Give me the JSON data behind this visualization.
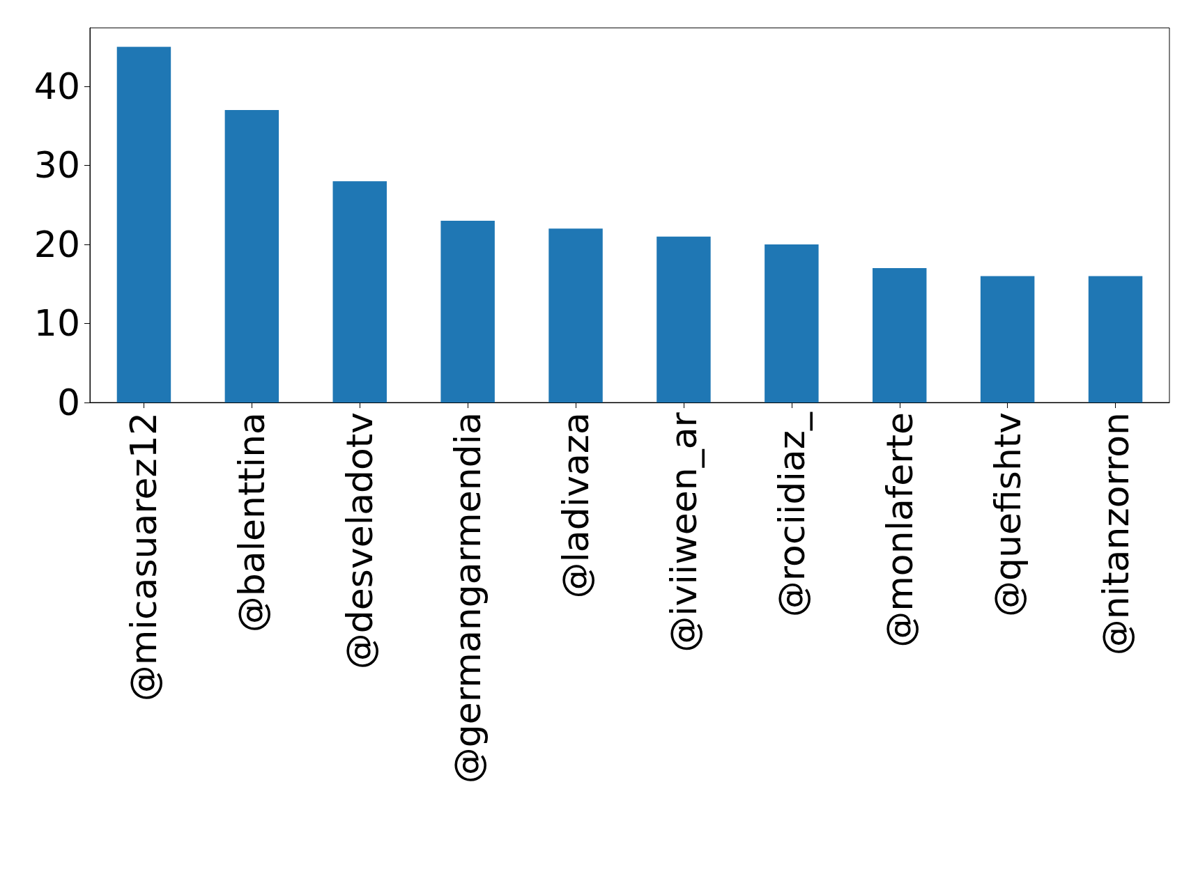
{
  "chart_data": {
    "type": "bar",
    "categories": [
      "@micasuarez12",
      "@balenttina",
      "@desveladotv",
      "@germangarmendia",
      "@ladivaza",
      "@iviiween_ar",
      "@rociidiaz_",
      "@monlaferte",
      "@quefishtv",
      "@nitanzorron"
    ],
    "values": [
      45,
      37,
      28,
      23,
      22,
      21,
      20,
      17,
      16,
      16
    ],
    "color": "#1f77b4",
    "ylim": [
      0,
      47.4
    ],
    "yticks": [
      0,
      10,
      20,
      30,
      40
    ],
    "grid": false
  }
}
